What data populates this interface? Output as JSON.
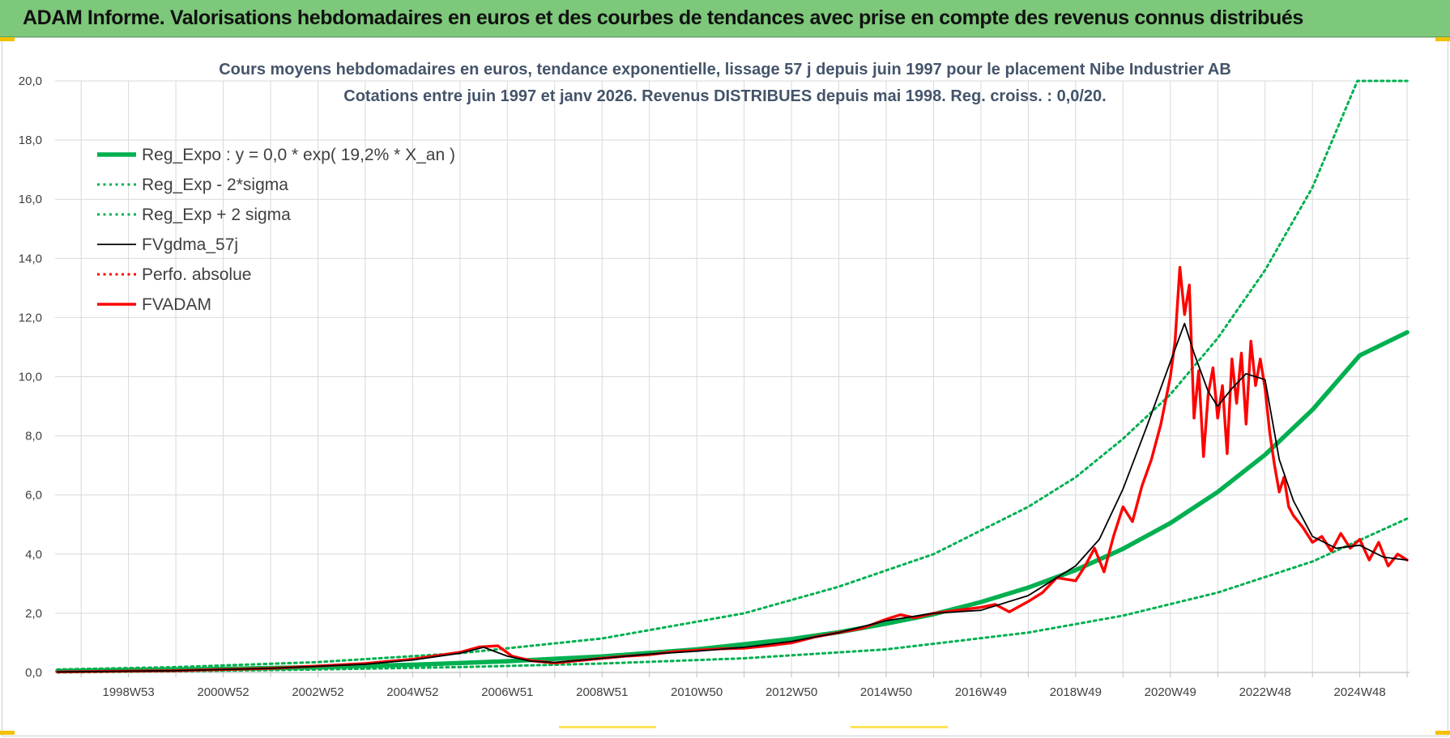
{
  "banner": {
    "title": "ADAM Informe. Valorisations hebdomadaires en euros et des courbes de tendances avec prise en compte des revenus connus distribués"
  },
  "chart_data": {
    "type": "line",
    "title_line1": "Cours moyens hebdomadaires en euros, tendance exponentielle, lissage 57 j depuis juin 1997 pour le placement Nibe Industrier AB",
    "title_line2": "Cotations entre juin 1997 et janv 2026.  Revenus DISTRIBUES depuis mai 1998. Reg.  croiss. : 0,0/20.",
    "xlim": [
      1997.45,
      2026.05
    ],
    "ylim": [
      0,
      20
    ],
    "y_ticks": [
      0,
      2,
      4,
      6,
      8,
      10,
      12,
      14,
      16,
      18,
      20
    ],
    "y_tick_labels": [
      "0,0",
      "2,0",
      "4,0",
      "6,0",
      "8,0",
      "10,0",
      "12,0",
      "14,0",
      "16,0",
      "18,0",
      "20,0"
    ],
    "x_gridlines": [
      1998,
      1999,
      2000,
      2001,
      2002,
      2003,
      2004,
      2005,
      2006,
      2007,
      2008,
      2009,
      2010,
      2011,
      2012,
      2013,
      2014,
      2015,
      2016,
      2017,
      2018,
      2019,
      2020,
      2021,
      2022,
      2023,
      2024,
      2025,
      2026
    ],
    "x_tick_positions": [
      1999,
      2001,
      2003,
      2005,
      2007,
      2009,
      2011,
      2013,
      2015,
      2017,
      2019,
      2021,
      2023,
      2025
    ],
    "x_tick_labels": [
      "1998W53",
      "2000W52",
      "2002W52",
      "2004W52",
      "2006W51",
      "2008W51",
      "2010W50",
      "2012W50",
      "2014W50",
      "2016W49",
      "2018W49",
      "2020W49",
      "2022W48",
      "2024W48"
    ],
    "series": [
      {
        "name": "Reg_Expo : y = 0,0 * exp( 19,2% *  X_an )",
        "color": "#00b050",
        "style": "solid-thick",
        "x": [
          1997.5,
          1999,
          2001,
          2003,
          2005,
          2007,
          2009,
          2011,
          2013,
          2014,
          2015,
          2016,
          2017,
          2018,
          2019,
          2020,
          2021,
          2022,
          2023,
          2024,
          2025,
          2026
        ],
        "values": [
          0.05,
          0.08,
          0.12,
          0.18,
          0.26,
          0.38,
          0.54,
          0.78,
          1.13,
          1.36,
          1.65,
          1.97,
          2.38,
          2.87,
          3.46,
          4.18,
          5.05,
          6.1,
          7.36,
          8.88,
          10.72,
          11.5
        ]
      },
      {
        "name": "Reg_Exp - 2*sigma",
        "color": "#00b050",
        "style": "dotted",
        "x": [
          1997.5,
          2000,
          2003,
          2006,
          2009,
          2012,
          2015,
          2018,
          2020,
          2022,
          2024,
          2026
        ],
        "values": [
          0.0,
          0.04,
          0.1,
          0.18,
          0.3,
          0.48,
          0.78,
          1.35,
          1.92,
          2.7,
          3.75,
          5.2
        ]
      },
      {
        "name": "Reg_Exp + 2 sigma",
        "color": "#00b050",
        "style": "dotted",
        "x": [
          1997.5,
          2000,
          2003,
          2006,
          2009,
          2012,
          2014,
          2016,
          2018,
          2019,
          2020,
          2021,
          2022,
          2023,
          2024,
          2024.95,
          2026
        ],
        "values": [
          0.1,
          0.18,
          0.35,
          0.65,
          1.15,
          2.0,
          2.9,
          4.0,
          5.6,
          6.6,
          7.9,
          9.4,
          11.3,
          13.6,
          16.4,
          20.0,
          20.0
        ]
      },
      {
        "name": "FVgdma_57j",
        "color": "#000000",
        "style": "solid",
        "x": [
          1997.5,
          2000,
          2002,
          2004,
          2005,
          2006,
          2006.5,
          2007,
          2007.5,
          2008,
          2009,
          2010,
          2011,
          2012,
          2013,
          2014,
          2015,
          2016,
          2017,
          2018,
          2018.5,
          2019,
          2019.5,
          2020,
          2020.5,
          2021,
          2021.3,
          2021.5,
          2021.8,
          2022,
          2022.3,
          2022.6,
          2023,
          2023.3,
          2023.6,
          2024,
          2024.5,
          2025,
          2025.5,
          2026
        ],
        "values": [
          0.02,
          0.06,
          0.14,
          0.28,
          0.42,
          0.65,
          0.85,
          0.55,
          0.38,
          0.34,
          0.48,
          0.62,
          0.72,
          0.85,
          1.05,
          1.35,
          1.75,
          2.0,
          2.1,
          2.6,
          3.1,
          3.6,
          4.5,
          6.2,
          8.3,
          10.5,
          11.8,
          10.8,
          9.5,
          9.0,
          9.6,
          10.1,
          9.9,
          7.2,
          5.8,
          4.6,
          4.2,
          4.3,
          3.9,
          3.8
        ]
      },
      {
        "name": "Perfo. absolue",
        "color": "#ff0000",
        "style": "dotted",
        "x": [],
        "values": []
      },
      {
        "name": "FVADAM",
        "color": "#ff0000",
        "style": "solid-thick",
        "x": [
          1997.5,
          2000,
          2002,
          2004,
          2005,
          2006,
          2006.4,
          2006.8,
          2007.1,
          2007.5,
          2008,
          2008.5,
          2009,
          2009.5,
          2010,
          2010.5,
          2011,
          2011.5,
          2012,
          2012.5,
          2013,
          2013.5,
          2014,
          2014.5,
          2015,
          2015.3,
          2015.6,
          2016,
          2016.5,
          2017,
          2017.3,
          2017.6,
          2018,
          2018.3,
          2018.6,
          2019,
          2019.2,
          2019.4,
          2019.6,
          2019.8,
          2020,
          2020.2,
          2020.4,
          2020.6,
          2020.8,
          2021,
          2021.1,
          2021.2,
          2021.3,
          2021.4,
          2021.5,
          2021.6,
          2021.7,
          2021.8,
          2021.9,
          2022,
          2022.1,
          2022.2,
          2022.3,
          2022.4,
          2022.5,
          2022.6,
          2022.7,
          2022.8,
          2022.9,
          2023,
          2023.1,
          2023.2,
          2023.3,
          2023.4,
          2023.5,
          2023.6,
          2023.8,
          2024,
          2024.2,
          2024.4,
          2024.6,
          2024.8,
          2025,
          2025.2,
          2025.4,
          2025.6,
          2025.8,
          2026
        ],
        "values": [
          0.02,
          0.06,
          0.14,
          0.3,
          0.45,
          0.68,
          0.86,
          0.9,
          0.55,
          0.4,
          0.32,
          0.4,
          0.48,
          0.55,
          0.6,
          0.7,
          0.75,
          0.8,
          0.82,
          0.9,
          1.0,
          1.2,
          1.35,
          1.5,
          1.8,
          1.95,
          1.85,
          2.0,
          2.1,
          2.2,
          2.3,
          2.05,
          2.4,
          2.7,
          3.2,
          3.1,
          3.6,
          4.2,
          3.4,
          4.6,
          5.6,
          5.1,
          6.3,
          7.2,
          8.4,
          10.0,
          11.2,
          13.7,
          12.1,
          13.1,
          8.6,
          10.2,
          7.3,
          9.4,
          10.3,
          8.6,
          9.7,
          7.4,
          10.6,
          9.1,
          10.8,
          8.4,
          11.2,
          9.7,
          10.6,
          9.6,
          8.1,
          7.0,
          6.1,
          6.6,
          5.6,
          5.3,
          4.9,
          4.4,
          4.6,
          4.1,
          4.7,
          4.2,
          4.5,
          3.8,
          4.4,
          3.6,
          4.0,
          3.8
        ]
      }
    ]
  }
}
